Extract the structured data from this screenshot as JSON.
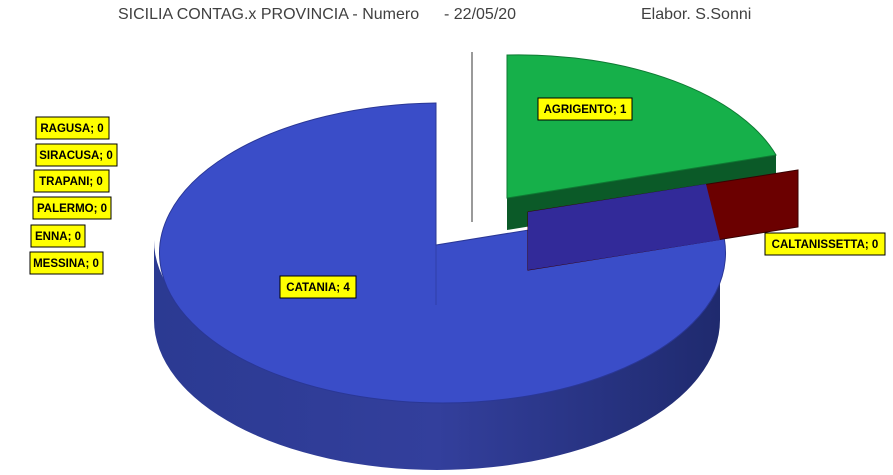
{
  "header": {
    "title": "SICILIA CONTAG.x PROVINCIA - Numero",
    "date": "-  22/05/20",
    "author": "Elabor. S.Sonni"
  },
  "chart_data": {
    "type": "pie",
    "style": "3d-exploded",
    "title": "SICILIA CONTAG.x PROVINCIA - Numero  -  22/05/20",
    "categories": [
      "AGRIGENTO",
      "CALTANISSETTA",
      "CATANIA",
      "ENNA",
      "MESSINA",
      "PALERMO",
      "RAGUSA",
      "SIRACUSA",
      "TRAPANI"
    ],
    "values": [
      1,
      0,
      4,
      0,
      0,
      0,
      0,
      0,
      0
    ],
    "labels": [
      "AGRIGENTO; 1",
      "CALTANISSETTA; 0",
      "CATANIA; 4",
      "ENNA; 0",
      "MESSINA; 0",
      "PALERMO; 0",
      "RAGUSA; 0",
      "SIRACUSA; 0",
      "TRAPANI; 0"
    ],
    "colors": {
      "AGRIGENTO": "#16b04a",
      "CALTANISSETTA": "#6b0000",
      "CATANIA": "#3a4dc8"
    },
    "label_box_color": "#ffff00",
    "legend": false
  }
}
